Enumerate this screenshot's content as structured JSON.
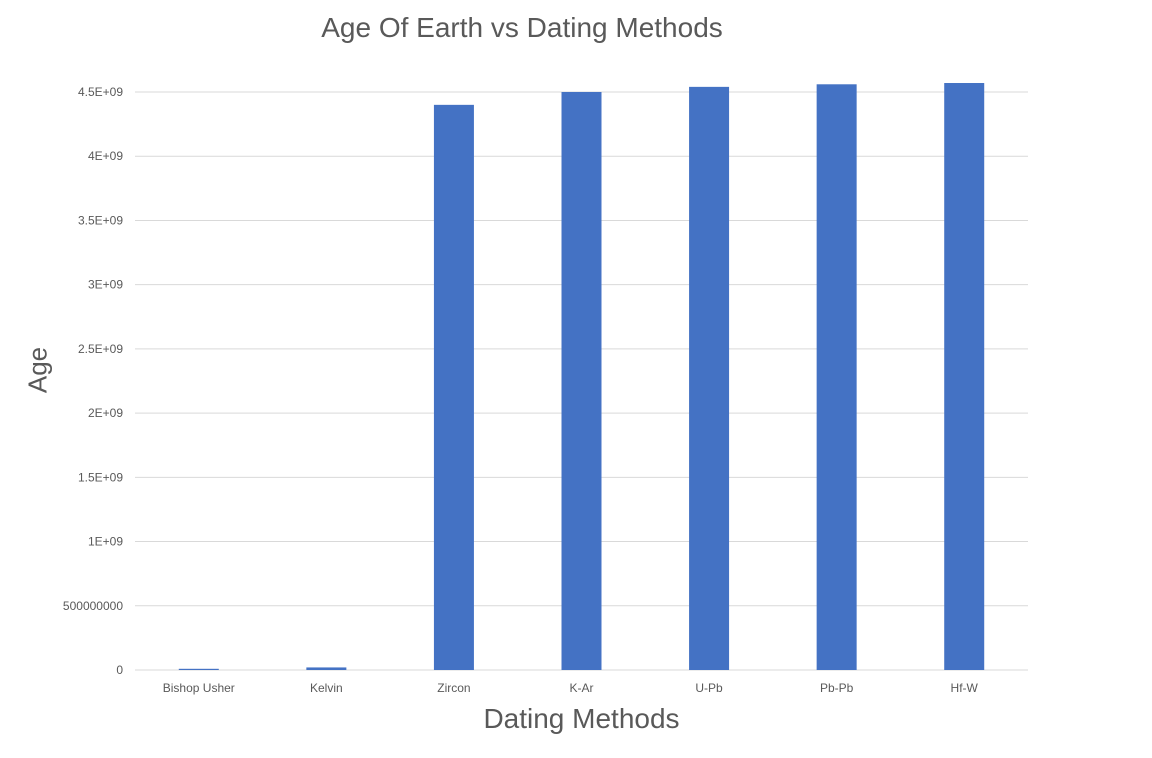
{
  "chart_data": {
    "type": "bar",
    "title": "Age Of Earth vs Dating Methods",
    "xlabel": "Dating Methods",
    "ylabel": "Age",
    "categories": [
      "Bishop Usher",
      "Kelvin",
      "Zircon",
      "K-Ar",
      "U-Pb",
      "Pb-Pb",
      "Hf-W"
    ],
    "values": [
      6000,
      20000000,
      4400000000,
      4500000000,
      4540000000,
      4560000000,
      4570000000
    ],
    "ylim": [
      0,
      4500000000
    ],
    "yticks": [
      0,
      500000000,
      1000000000,
      1500000000,
      2000000000,
      2500000000,
      3000000000,
      3500000000,
      4000000000,
      4500000000
    ],
    "ytick_labels": [
      "0",
      "500000000",
      "1E+09",
      "1.5E+09",
      "2E+09",
      "2.5E+09",
      "3E+09",
      "3.5E+09",
      "4E+09",
      "4.5E+09"
    ],
    "grid": true,
    "bar_color": "#4472C4",
    "grid_color": "#D9D9D9"
  }
}
